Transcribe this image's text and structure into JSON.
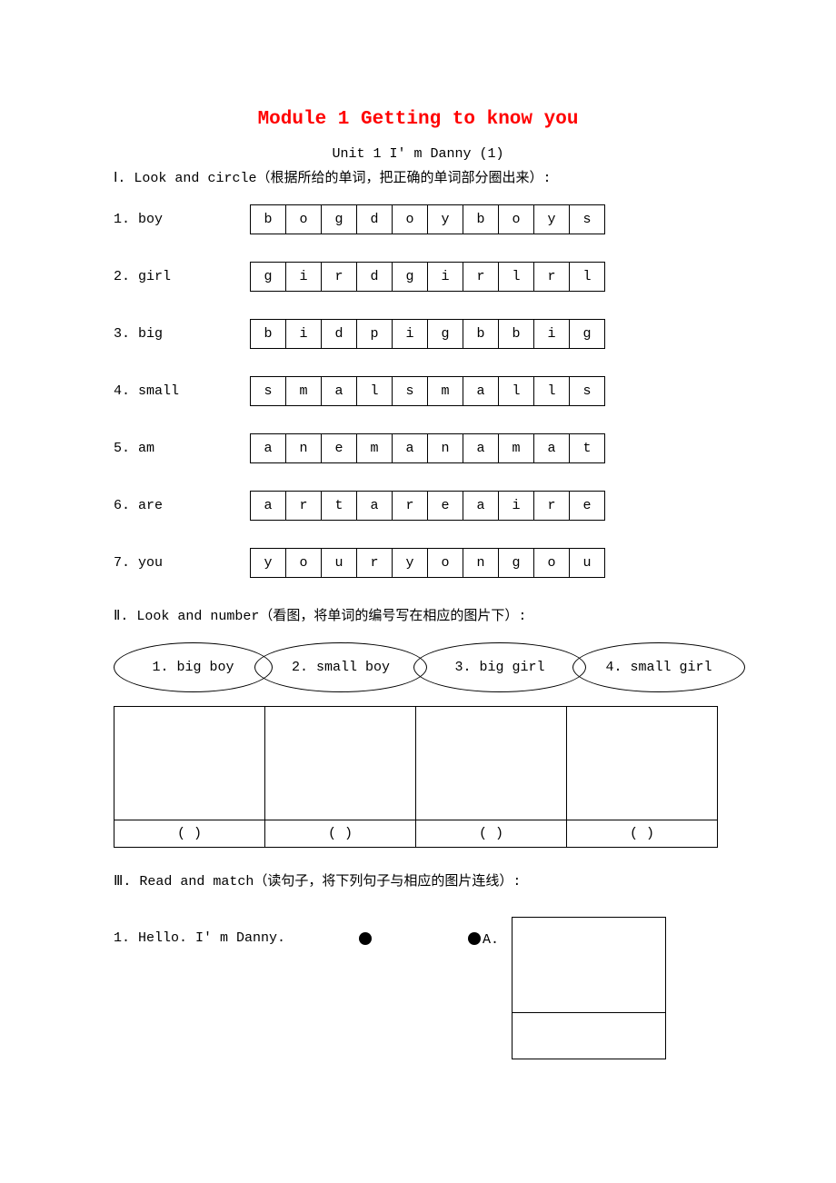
{
  "module_title": {
    "text": "Module 1  Getting to know you",
    "color": "#ff0000"
  },
  "unit_title": "Unit 1  I' m Danny (1)",
  "section1": {
    "heading": "Ⅰ. Look and circle（根据所给的单词，把正确的单词部分圈出来）:",
    "rows": [
      {
        "label": "1. boy",
        "letters": [
          "b",
          "o",
          "g",
          "d",
          "o",
          "y",
          "b",
          "o",
          "y",
          "s"
        ]
      },
      {
        "label": "2. girl",
        "letters": [
          "g",
          "i",
          "r",
          "d",
          "g",
          "i",
          "r",
          "l",
          "r",
          "l"
        ]
      },
      {
        "label": "3. big",
        "letters": [
          "b",
          "i",
          "d",
          "p",
          "i",
          "g",
          "b",
          "b",
          "i",
          "g"
        ]
      },
      {
        "label": "4. small",
        "letters": [
          "s",
          "m",
          "a",
          "l",
          "s",
          "m",
          "a",
          "l",
          "l",
          "s"
        ]
      },
      {
        "label": "5. am",
        "letters": [
          "a",
          "n",
          "e",
          "m",
          "a",
          "n",
          "a",
          "m",
          "a",
          "t"
        ]
      },
      {
        "label": "6. are",
        "letters": [
          "a",
          "r",
          "t",
          "a",
          "r",
          "e",
          "a",
          "i",
          "r",
          "e"
        ]
      },
      {
        "label": "7. you",
        "letters": [
          "y",
          "o",
          "u",
          "r",
          "y",
          "o",
          "n",
          "g",
          "o",
          "u"
        ]
      }
    ]
  },
  "section2": {
    "heading": "Ⅱ. Look and number（看图，将单词的编号写在相应的图片下）:",
    "ovals": [
      "1. big boy",
      "2. small boy",
      "3. big girl",
      "4. small girl"
    ],
    "paren": "(   )"
  },
  "section3": {
    "heading": "Ⅲ. Read and match（读句子，将下列句子与相应的图片连线）:",
    "item": {
      "sentence": "1. Hello. I' m Danny.",
      "match_label": "A."
    }
  }
}
